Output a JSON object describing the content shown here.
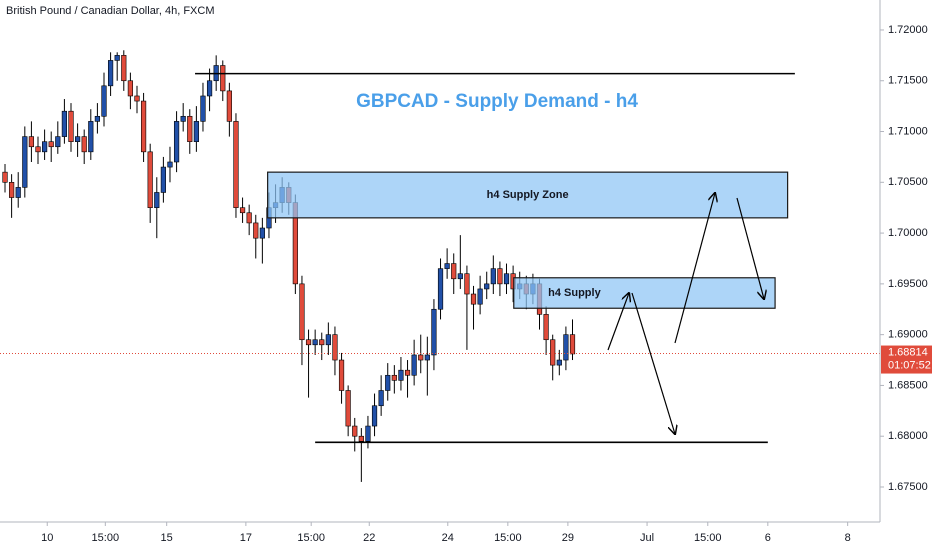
{
  "chart_data": {
    "type": "candlestick",
    "title": "GBPCAD - Supply Demand - h4",
    "subtitle": "British Pound / Canadian Dollar, 4h, FXCM",
    "up_color": "#2150a8",
    "down_color": "#e04b3b",
    "open": [
      1.706,
      1.705,
      1.7035,
      1.7045,
      1.7095,
      1.7085,
      1.708,
      1.709,
      1.7085,
      1.7095,
      1.712,
      1.709,
      1.7095,
      1.708,
      1.711,
      1.7115,
      1.7145,
      1.717,
      1.7175,
      1.715,
      1.7135,
      1.713,
      1.708,
      1.7025,
      1.704,
      1.7065,
      1.707,
      1.711,
      1.7115,
      1.709,
      1.711,
      1.7135,
      1.715,
      1.7165,
      1.714,
      1.711,
      1.7025,
      1.702,
      1.701,
      1.6995,
      1.7005,
      1.7025,
      1.703,
      1.7045,
      1.703,
      1.695,
      1.6895,
      1.689,
      1.6895,
      1.689,
      1.69,
      1.6875,
      1.6845,
      1.681,
      1.68,
      1.6795,
      1.681,
      1.683,
      1.6845,
      1.686,
      1.6855,
      1.6865,
      1.686,
      1.688,
      1.6875,
      1.688,
      1.6925,
      1.6965,
      1.697,
      1.6955,
      1.696,
      1.694,
      1.693,
      1.6945,
      1.695,
      1.6965,
      1.695,
      1.696,
      1.6945,
      1.695,
      1.694,
      1.695,
      1.692,
      1.6895,
      1.687,
      1.6875,
      1.69
    ],
    "high": [
      1.7068,
      1.7058,
      1.706,
      1.7105,
      1.711,
      1.7095,
      1.7102,
      1.71,
      1.711,
      1.7132,
      1.7128,
      1.7108,
      1.7102,
      1.7122,
      1.7128,
      1.7158,
      1.7178,
      1.7178,
      1.718,
      1.7158,
      1.7145,
      1.7138,
      1.7088,
      1.7055,
      1.7075,
      1.7085,
      1.712,
      1.7128,
      1.7122,
      1.7125,
      1.7148,
      1.7162,
      1.7175,
      1.717,
      1.7148,
      1.7118,
      1.7035,
      1.7028,
      1.7018,
      1.7015,
      1.704,
      1.7048,
      1.7055,
      1.705,
      1.7038,
      1.6958,
      1.6905,
      1.6905,
      1.6902,
      1.6912,
      1.6908,
      1.6882,
      1.685,
      1.6818,
      1.6808,
      1.682,
      1.6842,
      1.686,
      1.6872,
      1.687,
      1.6878,
      1.6875,
      1.6895,
      1.69,
      1.6898,
      1.6935,
      1.6975,
      1.6985,
      1.698,
      1.6998,
      1.6968,
      1.6948,
      1.6958,
      1.6962,
      1.6978,
      1.6972,
      1.697,
      1.6968,
      1.6962,
      1.6958,
      1.696,
      1.6955,
      1.6928,
      1.69,
      1.6885,
      1.6908,
      1.6915
    ],
    "low": [
      1.704,
      1.7015,
      1.7025,
      1.7035,
      1.707,
      1.7068,
      1.7072,
      1.707,
      1.7078,
      1.7088,
      1.708,
      1.7075,
      1.7068,
      1.7072,
      1.7098,
      1.7105,
      1.7135,
      1.715,
      1.714,
      1.7122,
      1.7118,
      1.707,
      1.701,
      1.6995,
      1.703,
      1.705,
      1.706,
      1.71,
      1.7078,
      1.708,
      1.71,
      1.712,
      1.714,
      1.713,
      1.7095,
      1.7015,
      1.701,
      1.6998,
      1.6975,
      1.697,
      1.6995,
      1.701,
      1.702,
      1.7018,
      1.694,
      1.687,
      1.6838,
      1.688,
      1.6875,
      1.688,
      1.686,
      1.6832,
      1.68,
      1.6785,
      1.6755,
      1.6788,
      1.68,
      1.682,
      1.6835,
      1.6842,
      1.6845,
      1.6838,
      1.685,
      1.6862,
      1.684,
      1.6865,
      1.6915,
      1.6955,
      1.694,
      1.6945,
      1.6885,
      1.6905,
      1.692,
      1.6935,
      1.694,
      1.6938,
      1.694,
      1.6932,
      1.6935,
      1.6925,
      1.693,
      1.6905,
      1.688,
      1.6855,
      1.686,
      1.6865,
      1.6875
    ],
    "close": [
      1.705,
      1.7035,
      1.7045,
      1.7095,
      1.7085,
      1.708,
      1.709,
      1.7085,
      1.7095,
      1.712,
      1.709,
      1.7095,
      1.708,
      1.711,
      1.7115,
      1.7145,
      1.717,
      1.7175,
      1.715,
      1.7135,
      1.713,
      1.708,
      1.7025,
      1.704,
      1.7065,
      1.707,
      1.711,
      1.7115,
      1.709,
      1.711,
      1.7135,
      1.715,
      1.7165,
      1.714,
      1.711,
      1.7025,
      1.702,
      1.701,
      1.6995,
      1.7005,
      1.7025,
      1.703,
      1.7045,
      1.703,
      1.695,
      1.6895,
      1.689,
      1.6895,
      1.689,
      1.69,
      1.6875,
      1.6845,
      1.681,
      1.68,
      1.6795,
      1.681,
      1.683,
      1.6845,
      1.686,
      1.6855,
      1.6865,
      1.686,
      1.688,
      1.6875,
      1.688,
      1.6925,
      1.6965,
      1.697,
      1.6955,
      1.696,
      1.694,
      1.693,
      1.6945,
      1.695,
      1.6965,
      1.695,
      1.696,
      1.6945,
      1.695,
      1.694,
      1.695,
      1.692,
      1.6895,
      1.687,
      1.6875,
      1.69,
      1.6881
    ],
    "xlim": [
      -0.76,
      132.6
    ],
    "xticks": [
      {
        "value": 6.4,
        "label": "10"
      },
      {
        "value": 15.2,
        "label": "15:00"
      },
      {
        "value": 24.5,
        "label": "15"
      },
      {
        "value": 36.5,
        "label": "17"
      },
      {
        "value": 46.4,
        "label": "15:00"
      },
      {
        "value": 55.2,
        "label": "22"
      },
      {
        "value": 67.1,
        "label": "24"
      },
      {
        "value": 76.2,
        "label": "15:00"
      },
      {
        "value": 85.3,
        "label": "29"
      },
      {
        "value": 97.3,
        "label": "Jul"
      },
      {
        "value": 106.5,
        "label": "15:00"
      },
      {
        "value": 115.6,
        "label": "6"
      },
      {
        "value": 127.7,
        "label": "8"
      }
    ],
    "ylim": [
      1.67175,
      1.72295
    ],
    "yticks": [
      {
        "value": 1.675,
        "label": "1.67500"
      },
      {
        "value": 1.68,
        "label": "1.68000"
      },
      {
        "value": 1.685,
        "label": "1.68500"
      },
      {
        "value": 1.69,
        "label": "1.69000"
      },
      {
        "value": 1.695,
        "label": "1.69500"
      },
      {
        "value": 1.7,
        "label": "1.70000"
      },
      {
        "value": 1.705,
        "label": "1.70500"
      },
      {
        "value": 1.71,
        "label": "1.71000"
      },
      {
        "value": 1.715,
        "label": "1.71500"
      },
      {
        "value": 1.72,
        "label": "1.72000"
      }
    ],
    "grid": false,
    "last_price": 1.68814,
    "countdown": "01:07:52",
    "zones": [
      {
        "label": "h4 Supply Zone",
        "low": 1.7015,
        "high": 1.706,
        "from": 39.8,
        "to": 118.6
      },
      {
        "label": "h4 Supply",
        "low": 1.6926,
        "high": 1.6956,
        "from": 77.1,
        "to": 116.7
      }
    ],
    "levels": [
      {
        "price": 1.7157,
        "from": 28.8,
        "to": 119.7
      },
      {
        "price": 1.6794,
        "from": 47,
        "to": 115.6
      }
    ]
  }
}
